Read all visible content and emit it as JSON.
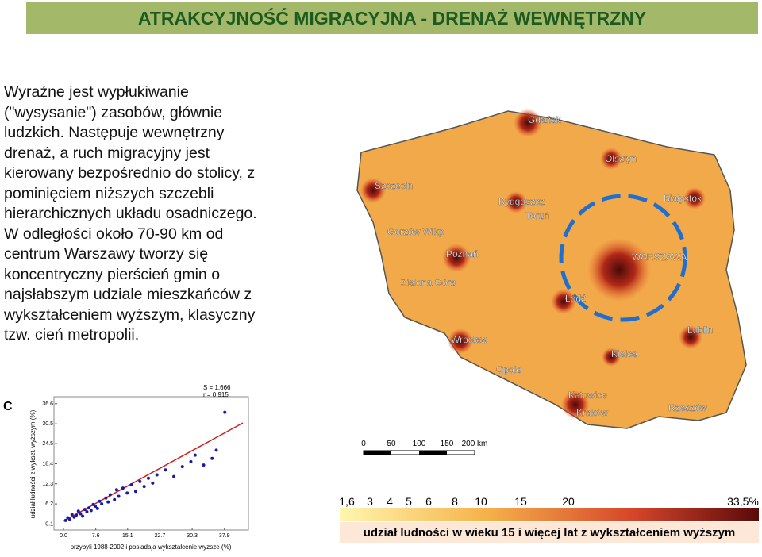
{
  "header": {
    "title": "ATRAKCYJNOŚĆ MIGRACYJNA - DRENAŻ WEWNĘTRZNY"
  },
  "body": {
    "lines": [
      "Wyraźne jest wypłukiwanie",
      "(\"wysysanie\") zasobów, głównie",
      "ludzkich. Następuje wewnętrzny",
      "drenaż, a ruch migracyjny jest",
      "kierowany bezpośrednio do stolicy, z",
      "pominięciem niższych szczebli",
      "hierarchicznych układu osadniczego.",
      "W odległości około 70-90 km od",
      "centrum Warszawy tworzy się",
      "koncentryczny pierścień gmin o",
      "najsłabszym udziale mieszkańców z",
      "wykształceniem wyższym, klasyczny",
      "tzw. cień metropolii."
    ]
  },
  "map": {
    "cities": [
      "Gdańsk",
      "Szczecin",
      "Olsztyn",
      "Bydgoszcz",
      "Toruń",
      "Białystok",
      "Gorzów Wlkp",
      "Poznań",
      "WARSZAWA",
      "Zielona Góra",
      "Łódź",
      "Wrocław",
      "Lublin",
      "Opole",
      "Kielce",
      "Katowice",
      "Kraków",
      "Rzeszów"
    ],
    "scale": [
      "0",
      "50",
      "100",
      "150",
      "200 km"
    ],
    "legend_ticks": [
      "1,6",
      "3",
      "4",
      "5",
      "6",
      "8",
      "10",
      "15",
      "20",
      "33,5%"
    ],
    "legend_caption": "udział ludności w wieku 15 i więcej lat z wykształceniem wyższym"
  },
  "inset": {
    "type": "scatter",
    "panel": "C",
    "stats": [
      "S = 1.666",
      "r = 0.915"
    ],
    "x_label": "przybyli 1988-2002 i posiadaja wykształcenie wyzsze (%)",
    "y_label": "udział ludności z wykszt. wyższym (%)",
    "xlim": [
      -1.5,
      43
    ],
    "ylim": [
      -1,
      38
    ],
    "xticks": [
      {
        "value": 0,
        "label": "0.0"
      },
      7.6,
      15.1,
      22.7,
      30.3,
      37.9
    ],
    "yticks": [
      0.1,
      6.2,
      12.3,
      18.4,
      24.5,
      30.5,
      36.6
    ],
    "color": "#1a1aa8",
    "x": [
      0.5,
      1,
      1.5,
      2,
      2.5,
      3,
      3.5,
      4,
      4.5,
      5,
      5.5,
      6,
      6.5,
      7,
      7.5,
      8,
      8.5,
      9,
      10,
      10.5,
      11,
      12,
      12.5,
      13,
      14,
      15,
      16,
      17,
      18,
      19,
      20,
      21,
      22,
      24,
      26,
      28,
      30,
      31,
      33,
      35,
      36,
      38
    ],
    "y": [
      1.2,
      2,
      1.5,
      3,
      2.2,
      2.8,
      4,
      3.2,
      2.5,
      4.5,
      3.8,
      5,
      4.2,
      6,
      5.5,
      4.8,
      7,
      6.2,
      8,
      6.8,
      9,
      7.5,
      10.5,
      8.5,
      11,
      9.5,
      12,
      10,
      13,
      11.5,
      14,
      12.5,
      15,
      16.5,
      14.5,
      17.5,
      19,
      21,
      18,
      20,
      22.5,
      34
    ]
  }
}
